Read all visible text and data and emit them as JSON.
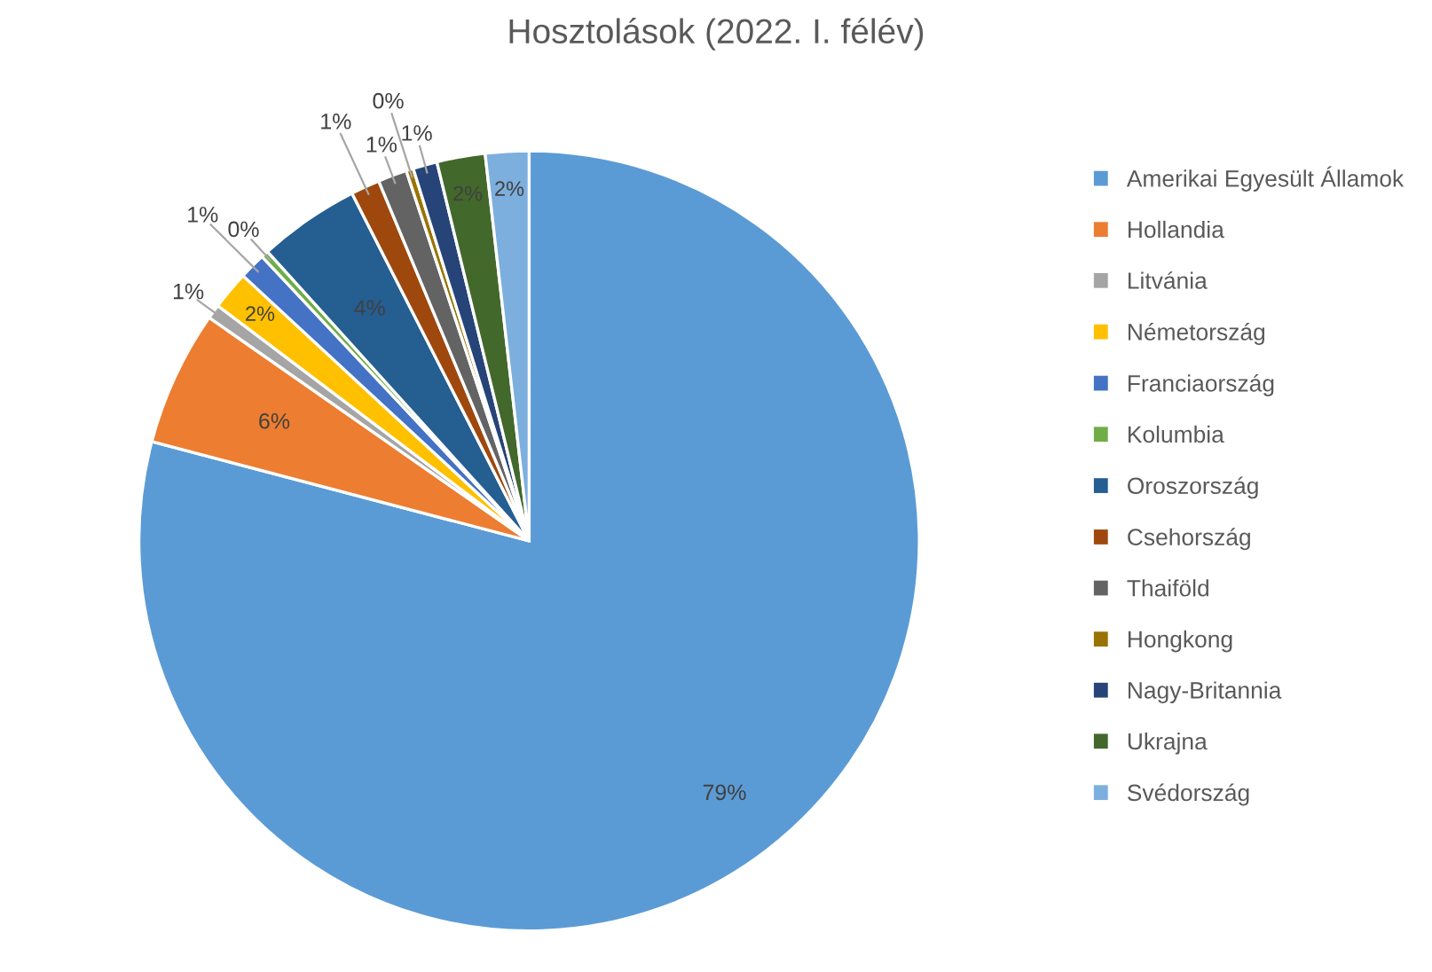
{
  "chart_data": {
    "type": "pie",
    "title": "Hosztolások (2022. I. félév)",
    "categories": [
      "Amerikai Egyesült Államok",
      "Hollandia",
      "Litvánia",
      "Németország",
      "Franciaország",
      "Kolumbia",
      "Oroszország",
      "Csehország",
      "Thaiföld",
      "Hongkong",
      "Nagy-Britannia",
      "Ukrajna",
      "Svédország"
    ],
    "values": [
      79.1,
      5.6,
      0.6,
      1.6,
      1.1,
      0.3,
      4.2,
      1.2,
      1.2,
      0.3,
      1.0,
      2.0,
      1.8
    ],
    "value_labels": [
      "79%",
      "6%",
      "1%",
      "2%",
      "1%",
      "0%",
      "4%",
      "1%",
      "1%",
      "0%",
      "1%",
      "2%",
      "2%"
    ],
    "colors": [
      "#5b9bd5",
      "#ed7d31",
      "#a5a5a5",
      "#ffc000",
      "#4472c4",
      "#70ad47",
      "#255e91",
      "#9e480e",
      "#636363",
      "#997300",
      "#264478",
      "#43682b",
      "#7cafdd"
    ],
    "legend": "right"
  }
}
